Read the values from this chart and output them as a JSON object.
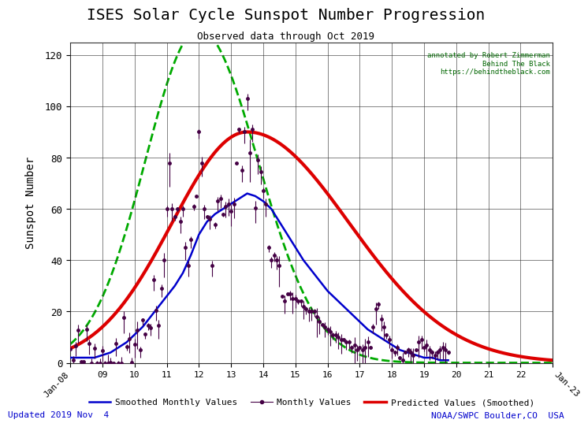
{
  "title": "ISES Solar Cycle Sunspot Number Progression",
  "subtitle": "Observed data through Oct 2019",
  "xlabel_ticks": [
    "Jan-08",
    "09",
    "10",
    "11",
    "12",
    "13",
    "14",
    "15",
    "16",
    "17",
    "18",
    "19",
    "20",
    "21",
    "22",
    "Jan-23"
  ],
  "ylabel": "Sunspot Number",
  "ylim": [
    0,
    125
  ],
  "xlim": [
    0,
    180
  ],
  "annotation_text": "annotated by Robert Zimmerman\nBehind The Black\nhttps://behindtheblack.com",
  "annotation_color": "#006600",
  "footer_left": "Updated 2019 Nov  4",
  "footer_right": "NOAA/SWPC Boulder,CO  USA",
  "footer_color": "#0000cc",
  "legend_items": [
    {
      "label": "Smoothed Monthly Values",
      "color": "#0000cc",
      "linestyle": "-",
      "marker": null
    },
    {
      "label": "Monthly Values",
      "color": "#330033",
      "linestyle": "-",
      "marker": "o"
    },
    {
      "label": "Predicted Values (Smoothed)",
      "color": "#cc0000",
      "linestyle": "-",
      "marker": null
    }
  ],
  "bg_color": "#ffffff",
  "grid_color": "#333333",
  "tick_label_color": "#000000",
  "title_color": "#000000",
  "subtitle_color": "#000000"
}
